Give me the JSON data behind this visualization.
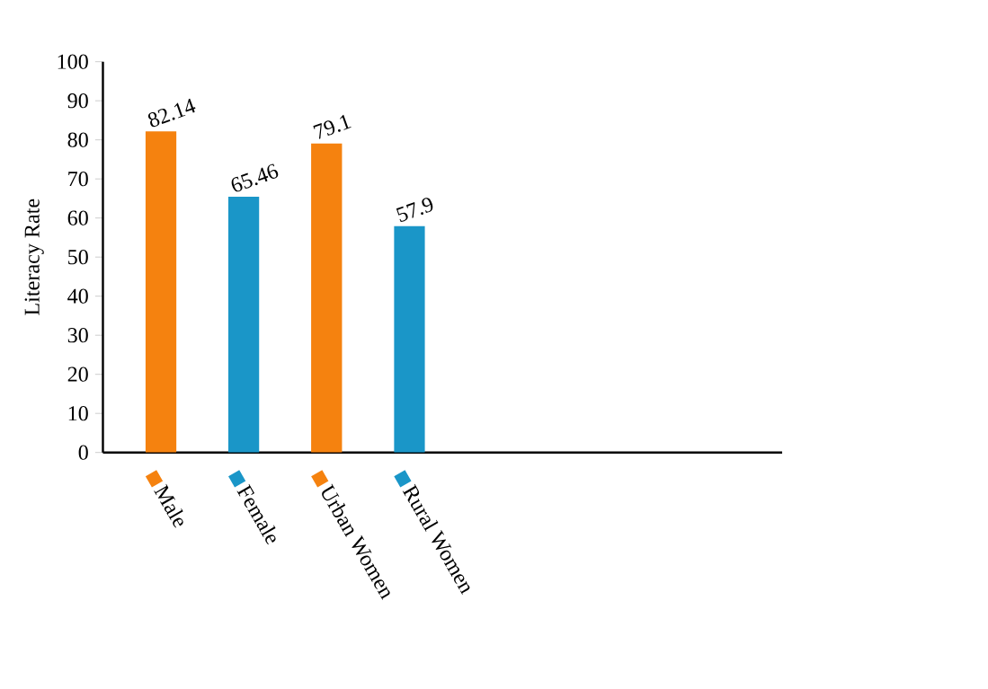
{
  "chart_data": {
    "type": "bar",
    "ylabel": "Literacy Rate",
    "categories": [
      "Male",
      "Female",
      "Urban Women",
      "Rural Women"
    ],
    "values": [
      82.14,
      65.46,
      79.1,
      57.9
    ],
    "colors": [
      "#f5820f",
      "#1a96c8",
      "#f5820f",
      "#1a96c8"
    ],
    "ylim": [
      0,
      100
    ],
    "yticks": [
      0,
      10,
      20,
      30,
      40,
      50,
      60,
      70,
      80,
      90,
      100
    ],
    "data_labels": true,
    "grid": false
  }
}
